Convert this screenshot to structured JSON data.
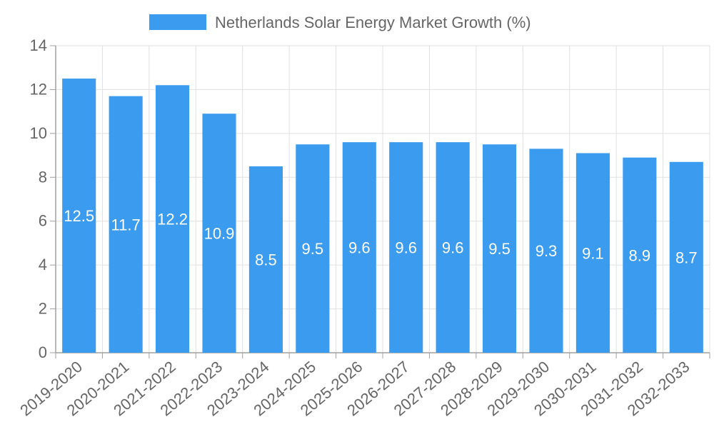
{
  "chart_data": {
    "type": "bar",
    "title": "",
    "xlabel": "",
    "ylabel": "",
    "categories": [
      "2019-2020",
      "2020-2021",
      "2021-2022",
      "2022-2023",
      "2023-2024",
      "2024-2025",
      "2025-2026",
      "2026-2027",
      "2027-2028",
      "2028-2029",
      "2029-2030",
      "2030-2031",
      "2031-2032",
      "2032-2033"
    ],
    "series": [
      {
        "name": "Netherlands Solar Energy Market Growth (%)",
        "values": [
          12.5,
          11.7,
          12.2,
          10.9,
          8.5,
          9.5,
          9.6,
          9.6,
          9.6,
          9.5,
          9.3,
          9.1,
          8.9,
          8.7
        ],
        "color": "#3a9bef"
      }
    ],
    "ylim": [
      0,
      14
    ],
    "yticks": [
      0,
      2,
      4,
      6,
      8,
      10,
      12,
      14
    ],
    "grid": true,
    "legend_position": "top-center",
    "data_labels": true,
    "colors": {
      "grid": "#e0e0e0",
      "axis": "#a0a0a0",
      "tick_text": "#666666",
      "data_label": "#ffffff"
    }
  }
}
